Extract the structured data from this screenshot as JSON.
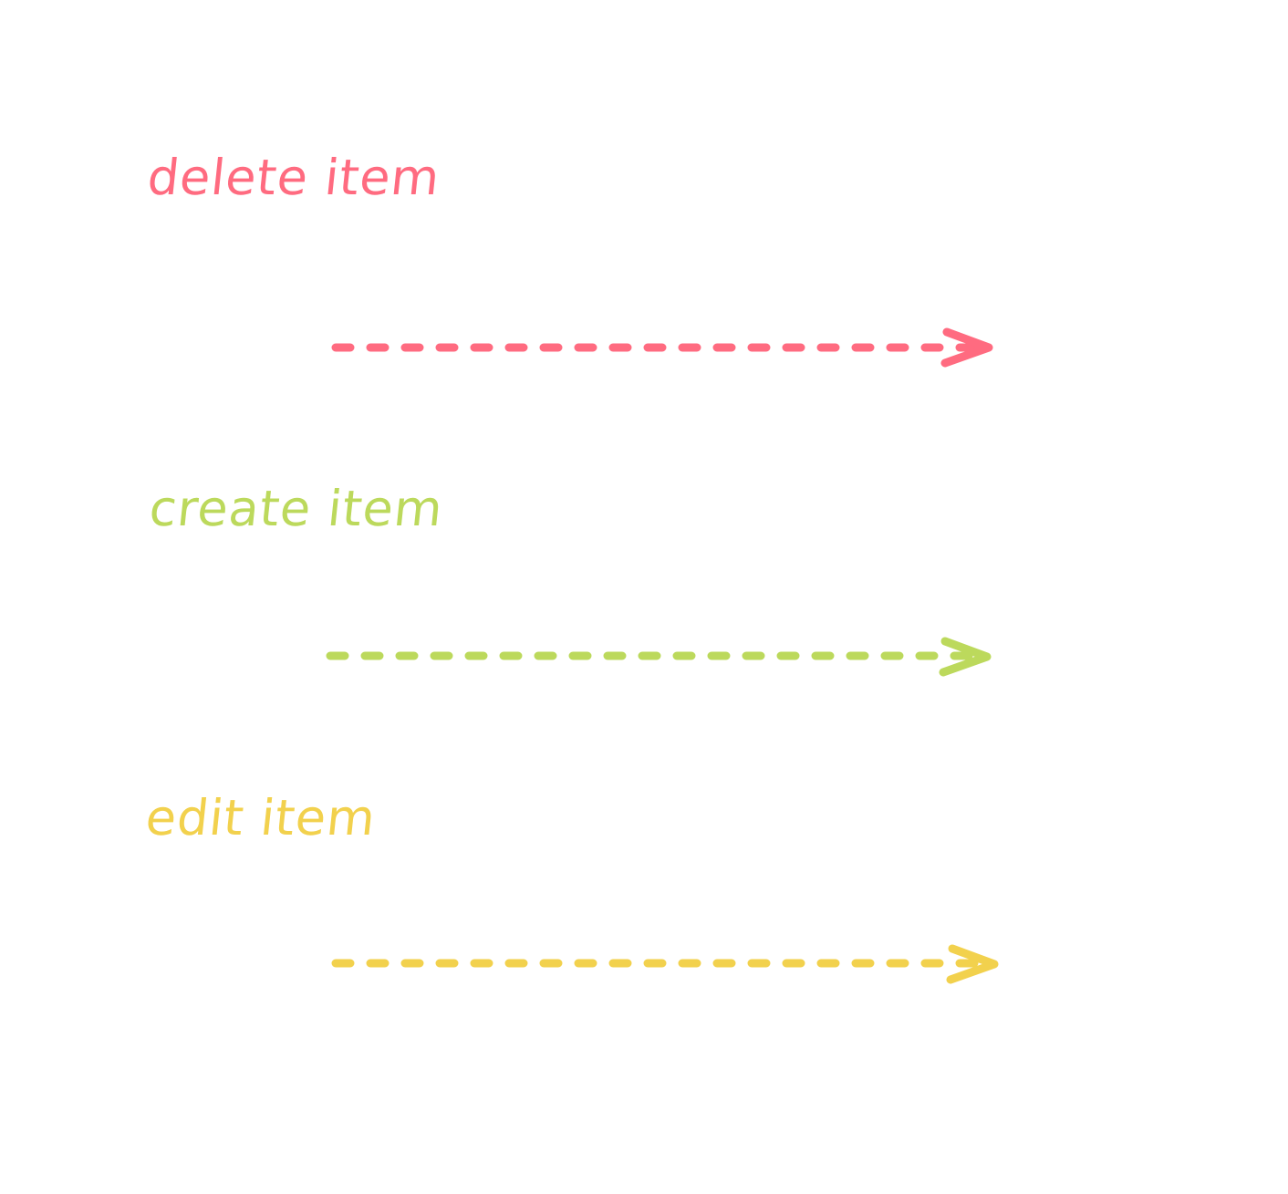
{
  "legend": {
    "items": [
      {
        "key": "delete",
        "label": "delete item",
        "color": "#ff6b80",
        "arrow_style": "dashed",
        "icon": "dashed-arrow-right-icon"
      },
      {
        "key": "create",
        "label": "create item",
        "color": "#bcd95c",
        "arrow_style": "dashed",
        "icon": "dashed-arrow-right-icon"
      },
      {
        "key": "edit",
        "label": "edit item",
        "color": "#f2d14d",
        "arrow_style": "dashed",
        "icon": "dashed-arrow-right-icon"
      }
    ]
  }
}
